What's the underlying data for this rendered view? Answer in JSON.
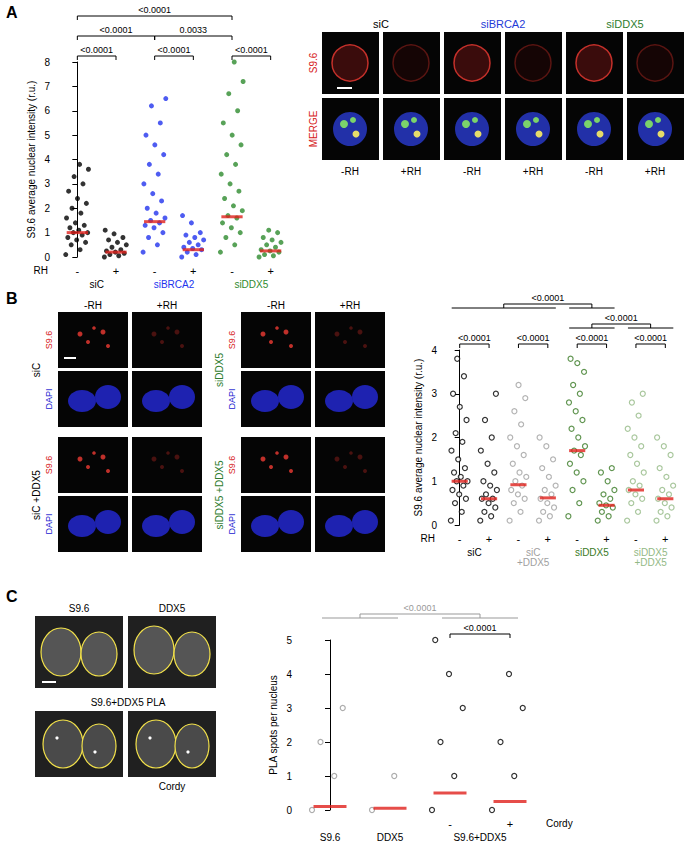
{
  "panel_labels": [
    "A",
    "B",
    "C"
  ],
  "chart_data": [
    {
      "type": "scatter",
      "ylabel": "S9.6 average nuclear intensity (r.u.)",
      "ylim": [
        0,
        8
      ],
      "yticks": [
        0,
        1,
        2,
        3,
        4,
        5,
        6,
        7,
        8
      ],
      "grid": false,
      "marker": "filled",
      "row_label": "RH",
      "categories": [
        "-",
        "+",
        "-",
        "+",
        "-",
        "+"
      ],
      "colors": [
        "#000000",
        "#000000",
        "#2233ee",
        "#2233ee",
        "#2e8b2e",
        "#2e8b2e"
      ],
      "groups": [
        {
          "label": "siC",
          "span": [
            0,
            1
          ],
          "color": "#000000"
        },
        {
          "label": "siBRCA2",
          "span": [
            2,
            3
          ],
          "color": "#2233ee"
        },
        {
          "label": "siDDX5",
          "span": [
            4,
            5
          ],
          "color": "#2e8b2e"
        }
      ],
      "values": [
        [
          0.1,
          0.3,
          0.5,
          0.6,
          0.7,
          0.8,
          0.9,
          1.0,
          1.0,
          1.1,
          1.2,
          1.3,
          1.4,
          1.6,
          1.8,
          2.0,
          2.2,
          2.4,
          2.7,
          3.0,
          3.3,
          3.6,
          3.8
        ],
        [
          0,
          0.05,
          0.1,
          0.15,
          0.2,
          0.25,
          0.3,
          0.4,
          0.5,
          0.6,
          0.7,
          0.8,
          0.95,
          1.1
        ],
        [
          0.2,
          0.5,
          0.8,
          1.0,
          1.2,
          1.3,
          1.4,
          1.5,
          1.6,
          1.8,
          2.0,
          2.3,
          2.6,
          3.0,
          3.4,
          3.8,
          4.2,
          4.6,
          5.0,
          5.5,
          6.2,
          6.5
        ],
        [
          0,
          0.1,
          0.2,
          0.3,
          0.35,
          0.4,
          0.5,
          0.6,
          0.7,
          0.8,
          0.9,
          1.0,
          1.4,
          1.7
        ],
        [
          0.2,
          0.5,
          0.8,
          1.0,
          1.2,
          1.4,
          1.6,
          1.7,
          1.9,
          2.1,
          2.4,
          2.7,
          3.0,
          3.4,
          3.8,
          4.2,
          4.6,
          5.0,
          5.5,
          6.0,
          6.7,
          7.2,
          8.0
        ],
        [
          0,
          0.05,
          0.1,
          0.2,
          0.25,
          0.3,
          0.4,
          0.5,
          0.6,
          0.7,
          0.8,
          1.0,
          1.1
        ]
      ],
      "medians": [
        1.0,
        0.2,
        1.45,
        0.3,
        1.65,
        0.25
      ],
      "median_color": "#e0201b",
      "comparisons": [
        {
          "a": [
            0,
            0
          ],
          "b": [
            1,
            1
          ],
          "label": "<0.0001"
        },
        {
          "a": [
            2,
            2
          ],
          "b": [
            3,
            3
          ],
          "label": "<0.0001"
        },
        {
          "a": [
            4,
            4
          ],
          "b": [
            5,
            5
          ],
          "label": "<0.0001"
        },
        {
          "a": [
            0,
            0
          ],
          "b": [
            2,
            2
          ],
          "label": "<0.0001"
        },
        {
          "a": [
            2,
            2
          ],
          "b": [
            4,
            4
          ],
          "label": "0.0033"
        },
        {
          "a": [
            0,
            0
          ],
          "b": [
            4,
            4
          ],
          "label": "<0.0001"
        }
      ]
    },
    {
      "type": "scatter",
      "ylabel": "S9.6 average nuclear intensity (r.u.)",
      "ylim": [
        0,
        4
      ],
      "yticks": [
        0,
        1,
        2,
        3,
        4
      ],
      "grid": false,
      "marker": "open",
      "row_label": "RH",
      "categories": [
        "-",
        "+",
        "-",
        "+",
        "-",
        "+",
        "-",
        "+"
      ],
      "colors": [
        "#000000",
        "#000000",
        "#a0a0a0",
        "#a0a0a0",
        "#3a7a26",
        "#3a7a26",
        "#93b985",
        "#93b985"
      ],
      "groups": [
        {
          "label": "siC",
          "span": [
            0,
            1
          ],
          "color": "#000000"
        },
        {
          "label": "siC +DDX5",
          "span": [
            2,
            3
          ],
          "color": "#a0a0a0"
        },
        {
          "label": "siDDX5",
          "span": [
            4,
            5
          ],
          "color": "#3a7a26"
        },
        {
          "label": "siDDX5 +DDX5",
          "span": [
            6,
            7
          ],
          "color": "#93b985"
        }
      ],
      "values": [
        [
          0.1,
          0.3,
          0.5,
          0.6,
          0.7,
          0.8,
          0.9,
          1.0,
          1.0,
          1.1,
          1.2,
          1.3,
          1.5,
          1.7,
          1.9,
          2.1,
          2.4,
          2.7,
          3.0,
          3.4,
          3.8
        ],
        [
          0.1,
          0.2,
          0.3,
          0.4,
          0.5,
          0.6,
          0.6,
          0.7,
          0.8,
          0.9,
          1.0,
          1.2,
          1.4,
          1.7,
          2.0,
          2.4,
          3.0
        ],
        [
          0.1,
          0.3,
          0.5,
          0.6,
          0.7,
          0.8,
          0.9,
          1.0,
          1.1,
          1.2,
          1.4,
          1.6,
          1.8,
          2.0,
          2.3,
          2.6,
          2.9,
          3.2
        ],
        [
          0.1,
          0.2,
          0.3,
          0.4,
          0.5,
          0.6,
          0.7,
          0.8,
          0.9,
          1.1,
          1.3,
          1.5,
          1.8,
          2.0
        ],
        [
          0.2,
          0.5,
          0.8,
          1.0,
          1.2,
          1.4,
          1.6,
          1.7,
          1.8,
          2.0,
          2.2,
          2.4,
          2.6,
          2.8,
          3.0,
          3.2,
          3.5,
          3.7,
          3.8
        ],
        [
          0.1,
          0.2,
          0.3,
          0.4,
          0.45,
          0.5,
          0.6,
          0.7,
          0.8,
          1.0,
          1.2,
          1.3
        ],
        [
          0.1,
          0.3,
          0.5,
          0.6,
          0.7,
          0.8,
          0.9,
          1.0,
          1.2,
          1.4,
          1.6,
          1.8,
          2.0,
          2.2,
          2.5,
          2.8,
          3.0
        ],
        [
          0.1,
          0.2,
          0.3,
          0.4,
          0.5,
          0.6,
          0.7,
          0.8,
          0.9,
          1.1,
          1.3,
          1.6,
          1.8,
          2.0
        ]
      ],
      "medians": [
        1.0,
        0.6,
        0.92,
        0.62,
        1.7,
        0.45,
        0.8,
        0.6
      ],
      "median_color": "#e0201b",
      "comparisons": [
        {
          "a": [
            0,
            0
          ],
          "b": [
            1,
            1
          ],
          "label": "<0.0001"
        },
        {
          "a": [
            2,
            2
          ],
          "b": [
            3,
            3
          ],
          "label": "<0.0001"
        },
        {
          "a": [
            4,
            4
          ],
          "b": [
            5,
            5
          ],
          "label": "<0.0001"
        },
        {
          "a": [
            6,
            6
          ],
          "b": [
            7,
            7
          ],
          "label": "<0.0001"
        },
        {
          "a": [
            4,
            5
          ],
          "b": [
            6,
            7
          ],
          "label": "<0.0001"
        },
        {
          "a": [
            0,
            3
          ],
          "b": [
            4,
            5
          ],
          "label": "<0.0001"
        }
      ]
    },
    {
      "type": "scatter",
      "ylabel": "PLA spots per nucleus",
      "ylim": [
        0,
        5
      ],
      "yticks": [
        0,
        1,
        2,
        3,
        4,
        5
      ],
      "grid": false,
      "marker": "open",
      "row_label": "Cordy",
      "categories": [
        null,
        null,
        "-",
        "+"
      ],
      "colors": [
        "#999999",
        "#999999",
        "#000000",
        "#000000"
      ],
      "groups": [
        {
          "label": "S9.6",
          "span": [
            0,
            0
          ],
          "color": "#000000"
        },
        {
          "label": "DDX5",
          "span": [
            1,
            1
          ],
          "color": "#000000"
        },
        {
          "label": "S9.6+DDX5",
          "span": [
            2,
            3
          ],
          "color": "#000000"
        }
      ],
      "values": [
        [
          0,
          1,
          2,
          3
        ],
        [
          0,
          1
        ],
        [
          0,
          1,
          2,
          3,
          4,
          5
        ],
        [
          0,
          1,
          2,
          3,
          4
        ]
      ],
      "medians": [
        0.1,
        0.05,
        0.5,
        0.25
      ],
      "median_color": "#e0201b",
      "comparisons": [
        {
          "a": [
            2,
            2
          ],
          "b": [
            3,
            3
          ],
          "label": "<0.0001",
          "color": "#000000"
        },
        {
          "a": [
            0,
            1
          ],
          "b": [
            2,
            3
          ],
          "label": "<0.0001",
          "color": "#999999"
        }
      ]
    }
  ],
  "image_panels": {
    "A": {
      "columns": [
        {
          "label": "siC",
          "color": "#000000"
        },
        {
          "label": "siBRCA2",
          "color": "#1f3bd8"
        },
        {
          "label": "siDDX5",
          "color": "#2f7d2f"
        }
      ],
      "sub_columns": [
        "-RH",
        "+RH"
      ],
      "rows": [
        {
          "label": "S9.6",
          "color": "#d62020"
        },
        {
          "label": "MERGE",
          "color": "#d62020"
        }
      ]
    },
    "B": {
      "blocks": [
        {
          "label": "siC",
          "color": "#000000"
        },
        {
          "label": "siC +DDX5",
          "color": "#000000"
        },
        {
          "label": "siDDX5",
          "color": "#2f7d2f"
        },
        {
          "label": "siDDX5 +DDX5",
          "color": "#2f7d2f"
        }
      ],
      "sub_columns": [
        "-RH",
        "+RH"
      ],
      "rows": [
        {
          "label": "S9.6",
          "color": "#d62020"
        },
        {
          "label": "DAPI",
          "color": "#2020d0"
        }
      ]
    },
    "C": {
      "singles": [
        "S9.6",
        "DDX5"
      ],
      "pair_title": "S9.6+DDX5 PLA",
      "pair_note": "Cordy"
    }
  }
}
